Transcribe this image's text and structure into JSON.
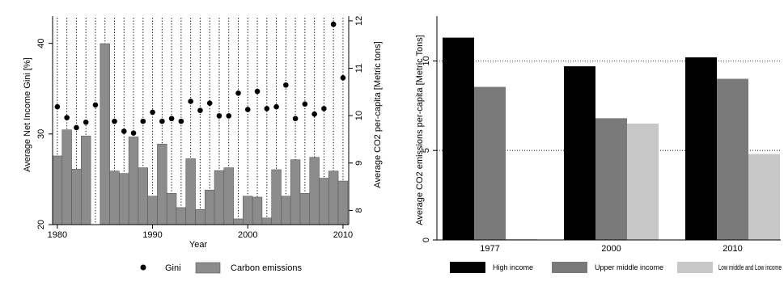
{
  "chart_data": [
    {
      "type": "bar",
      "xlabel": "Year",
      "ylabel_left": "Average Net Income Gini [%]",
      "ylabel_right": "Average CO2 per-capita [Metric tons]",
      "x_ticks": [
        1980,
        1990,
        2000,
        2010
      ],
      "y_left_ticks": [
        20,
        30,
        40
      ],
      "y_left_range": [
        20,
        43
      ],
      "y_right_ticks": [
        8,
        9,
        10,
        11,
        12
      ],
      "y_right_range": [
        7.7,
        12.1
      ],
      "x_range": [
        1979.5,
        2010.6
      ],
      "grid": "vertical dotted lines at each year",
      "legend_position": "bottom",
      "series": [
        {
          "name": "Gini",
          "kind": "scatter",
          "axis": "left",
          "x": [
            1980,
            1981,
            1982,
            1983,
            1984,
            1986,
            1987,
            1988,
            1989,
            1990,
            1991,
            1992,
            1993,
            1994,
            1995,
            1996,
            1997,
            1998,
            1999,
            2000,
            2001,
            2002,
            2003,
            2004,
            2005,
            2006,
            2007,
            2008,
            2009,
            2010
          ],
          "values": [
            33.0,
            31.8,
            30.7,
            31.3,
            33.2,
            31.4,
            30.3,
            30.1,
            31.4,
            32.4,
            31.4,
            31.7,
            31.4,
            33.6,
            32.6,
            33.4,
            32.0,
            32.0,
            34.5,
            32.7,
            34.7,
            32.8,
            33.0,
            35.4,
            31.7,
            33.3,
            32.2,
            32.8,
            42.1,
            36.2
          ],
          "color": "#000000"
        },
        {
          "name": "Carbon emissions",
          "kind": "bar",
          "axis": "right",
          "x": [
            1980,
            1981,
            1982,
            1983,
            1985,
            1986,
            1987,
            1988,
            1989,
            1990,
            1991,
            1992,
            1993,
            1994,
            1995,
            1996,
            1997,
            1998,
            1999,
            2000,
            2001,
            2002,
            2003,
            2004,
            2005,
            2006,
            2007,
            2008,
            2009,
            2010
          ],
          "values": [
            9.15,
            9.7,
            8.87,
            9.57,
            11.52,
            8.83,
            8.78,
            9.55,
            8.9,
            8.3,
            9.4,
            8.36,
            8.06,
            9.09,
            8.02,
            8.43,
            8.84,
            8.9,
            7.82,
            8.3,
            8.28,
            7.84,
            8.86,
            8.3,
            9.07,
            8.36,
            9.12,
            8.68,
            8.83,
            8.62
          ],
          "color": "#8c8c8c"
        }
      ]
    },
    {
      "type": "bar",
      "ylabel": "Average CO2 emissions per-capita [Metric Tons]",
      "categories": [
        "1977",
        "2000",
        "2010"
      ],
      "y_ticks": [
        0,
        5,
        10
      ],
      "y_range": [
        0,
        12.5
      ],
      "grid": "horizontal dotted lines at 5 and 10",
      "legend_position": "bottom",
      "series": [
        {
          "name": "High income",
          "values": [
            11.3,
            9.7,
            10.2
          ],
          "color": "#000000"
        },
        {
          "name": "Upper middle income",
          "values": [
            8.55,
            6.8,
            9.0
          ],
          "color": "#7a7a7a"
        },
        {
          "name": "Low middle and Low income",
          "values": [
            0.05,
            6.5,
            4.8
          ],
          "color": "#c8c8c8"
        }
      ]
    }
  ]
}
